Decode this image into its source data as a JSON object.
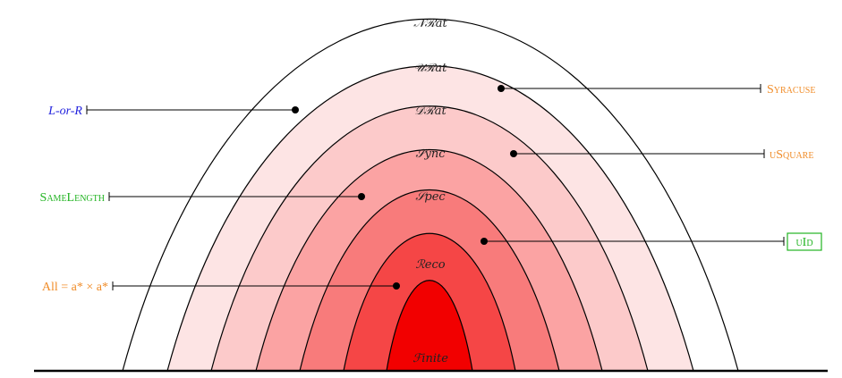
{
  "classes": [
    {
      "label": "𝒩ℛat",
      "fill": "#ffffff"
    },
    {
      "label": "𝒰ℛat",
      "fill": "#fde4e4"
    },
    {
      "label": "𝒟ℛat",
      "fill": "#fccaca"
    },
    {
      "label": "𝒮ync",
      "fill": "#fba3a3"
    },
    {
      "label": "𝒮pec",
      "fill": "#f87b7b"
    },
    {
      "label": "ℛeco",
      "fill": "#f54646"
    },
    {
      "label": "ℱinite",
      "fill": "#f20000"
    }
  ],
  "examples": [
    {
      "label": "L-or-R",
      "color": "#2222dd"
    },
    {
      "label": "Syracuse",
      "color": "#f08c28"
    },
    {
      "label": "uSquare",
      "color": "#f08c28"
    },
    {
      "label": "SameLength",
      "color": "#22b422"
    },
    {
      "label": "uId",
      "color": "#22b422"
    },
    {
      "label": "All = a* × a*",
      "color": "#f08c28"
    }
  ]
}
